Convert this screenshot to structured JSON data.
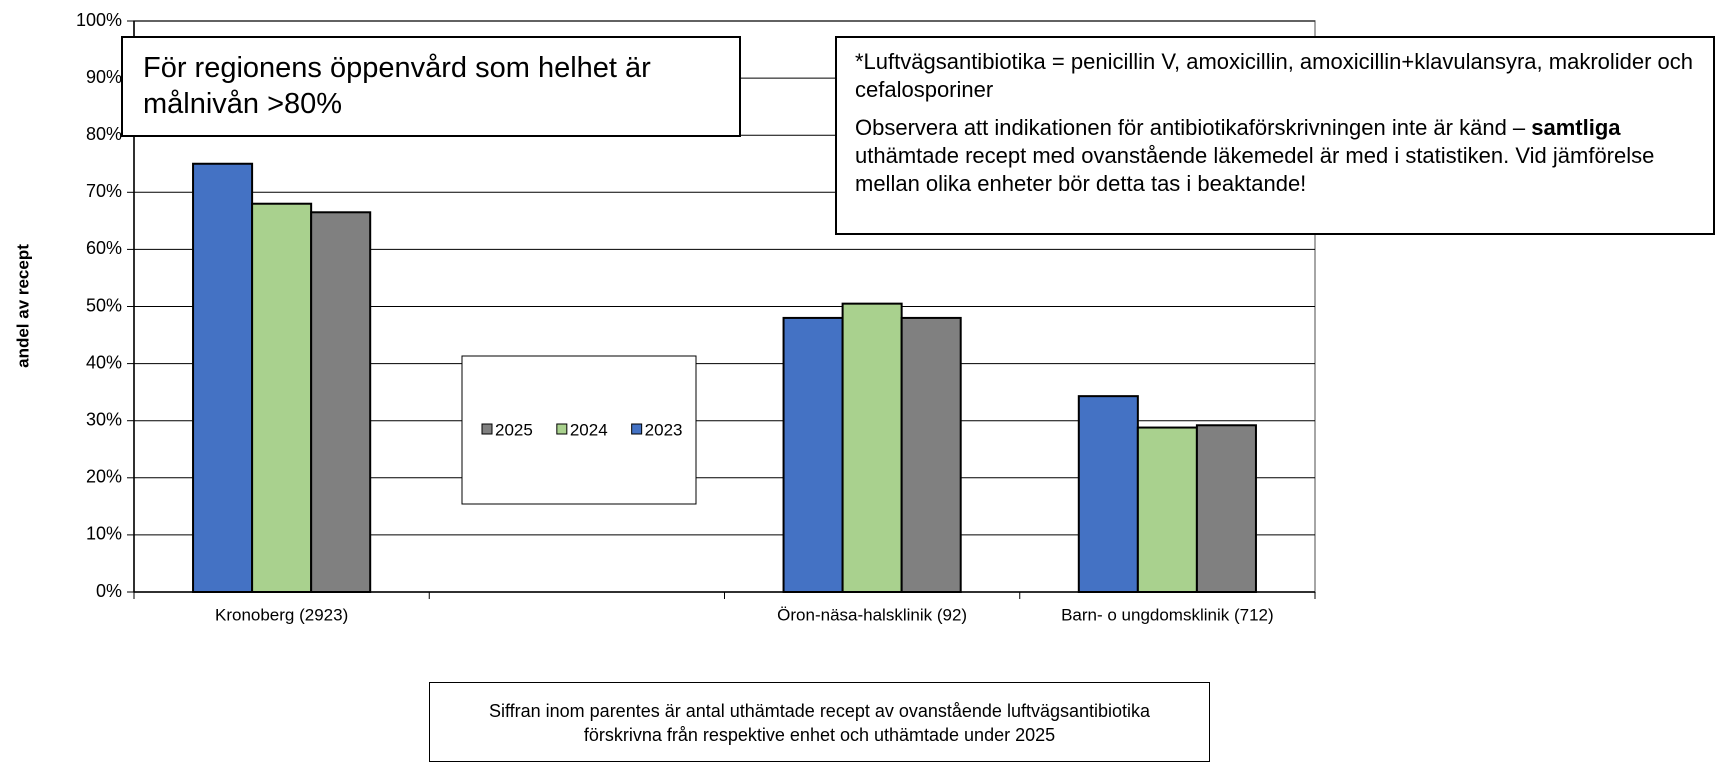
{
  "chart_data": {
    "type": "bar",
    "categories": [
      "Kronoberg (2923)",
      null,
      "Öron-näsa-halsklinik (92)",
      "Barn- o ungdomsklinik (712)"
    ],
    "series": [
      {
        "name": "2025",
        "color": "#808080",
        "values": [
          66.5,
          null,
          48,
          29.2
        ]
      },
      {
        "name": "2024",
        "color": "#a9d18e",
        "values": [
          68,
          null,
          50.5,
          28.8
        ]
      },
      {
        "name": "2023",
        "color": "#4472c4",
        "values": [
          75,
          null,
          48,
          34.3
        ]
      }
    ],
    "ylabel": "andel av recept",
    "ylim": [
      0,
      100
    ],
    "yticks": [
      {
        "value": 0,
        "label": "0%"
      },
      {
        "value": 10,
        "label": "10%"
      },
      {
        "value": 20,
        "label": "20%"
      },
      {
        "value": 30,
        "label": "30%"
      },
      {
        "value": 40,
        "label": "40%"
      },
      {
        "value": 50,
        "label": "50%"
      },
      {
        "value": 60,
        "label": "60%"
      },
      {
        "value": 70,
        "label": "70%"
      },
      {
        "value": 80,
        "label": "80%"
      },
      {
        "value": 90,
        "label": "90%"
      },
      {
        "value": 100,
        "label": "100%"
      }
    ],
    "grid": true,
    "annotations": {
      "target": "För regionens öppenvård som helhet är målnivån >80%",
      "definition": "*Luftvägsantibiotika = penicillin V, amoxicillin, amoxicillin+klavulansyra, makrolider och cefalosporiner",
      "caution": [
        "Observera att indikationen för antibiotikaförskrivningen inte är känd – ",
        "samtliga",
        " uthämtade recept med ovanstående läkemedel är med i statistiken. Vid jämförelse mellan olika enheter bör detta tas i beaktande!"
      ],
      "footnote": "Siffran inom parentes är antal uthämtade recept av ovanstående luftvägsantibiotika förskrivna från respektive enhet och uthämtade under 2025"
    }
  }
}
